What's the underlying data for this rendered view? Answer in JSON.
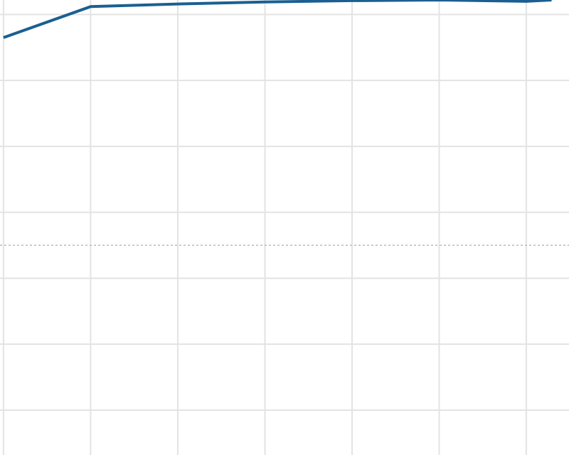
{
  "chart_data": {
    "type": "line",
    "x": [
      0,
      1,
      2,
      3,
      4,
      5,
      6,
      6.29
    ],
    "series": [
      {
        "color": "#1b5f91",
        "values": [
          31.5,
          36.2,
          36.6,
          36.9,
          37.1,
          37.2,
          37.0,
          37.2
        ]
      }
    ],
    "xlim": [
      -0.04,
      6.49
    ],
    "xticks": [
      0,
      1,
      2,
      3,
      4,
      5,
      6
    ],
    "ylim": [
      -31.8,
      37.2
    ],
    "yticks": [
      35,
      25,
      15,
      5,
      -5,
      -15,
      -25
    ],
    "reference_line": 0,
    "grid": true
  }
}
